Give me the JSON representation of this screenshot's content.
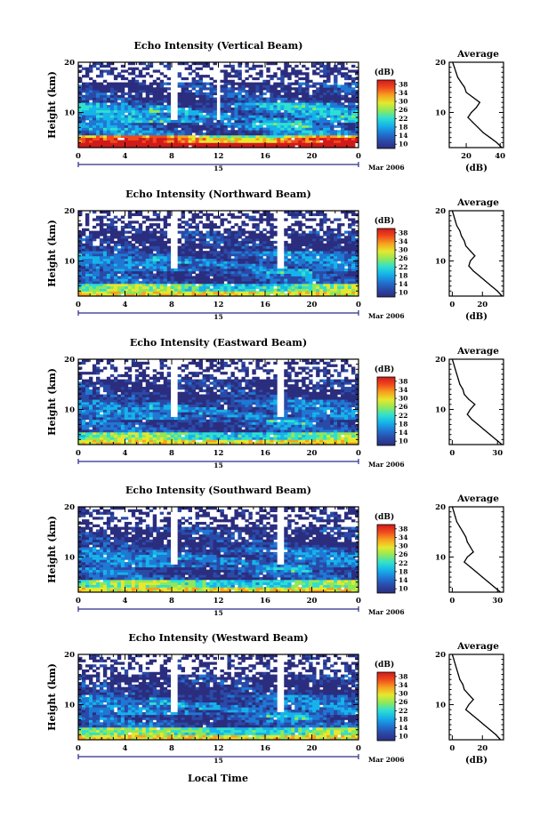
{
  "figure": {
    "xlabel": "Local Time",
    "date_label": "15",
    "month_label": "Mar 2006"
  },
  "colorbar": {
    "unit": "(dB)",
    "ticks": [
      "10",
      "14",
      "18",
      "22",
      "26",
      "30",
      "34",
      "38"
    ],
    "range": [
      10,
      40
    ],
    "colors": [
      "#2b2d7e",
      "#2a4aa8",
      "#1f78d4",
      "#16b3ea",
      "#2fe0d0",
      "#8fe85a",
      "#e5e82e",
      "#f7a21e",
      "#f04a1e",
      "#d01a1a"
    ]
  },
  "chart_data": [
    {
      "type": "heatmap",
      "title": "Echo Intensity (Vertical Beam)",
      "xlabel": "Local Time",
      "ylabel": "Height (km)",
      "xlim": [
        0,
        24
      ],
      "ylim": [
        3,
        20
      ],
      "xticks": [
        "0",
        "4",
        "8",
        "12",
        "16",
        "20",
        "0"
      ],
      "yticks": [
        "20",
        "10"
      ],
      "zlim": [
        10,
        40
      ],
      "zunit": "dB",
      "data_gaps_hours": [
        8.2,
        12.1
      ],
      "profile": {
        "title": "Average",
        "xlabel": "(dB)",
        "xlim": [
          10,
          42
        ],
        "xticks": [
          "20",
          "40"
        ],
        "xticks_values": [
          20,
          40
        ],
        "height": [
          3,
          4,
          5,
          6,
          7,
          8,
          9,
          10,
          11,
          12,
          13,
          14,
          15,
          16,
          17,
          18,
          19,
          20
        ],
        "avg_db": [
          41,
          38,
          34,
          30,
          27,
          24,
          21,
          23,
          26,
          28,
          24,
          20,
          19,
          17,
          15,
          14,
          13,
          12
        ]
      }
    },
    {
      "type": "heatmap",
      "title": "Echo Intensity (Northward Beam)",
      "xlabel": "Local Time",
      "ylabel": "Height (km)",
      "xlim": [
        0,
        24
      ],
      "ylim": [
        3,
        20
      ],
      "xticks": [
        "0",
        "4",
        "8",
        "12",
        "16",
        "20",
        "0"
      ],
      "yticks": [
        "20",
        "10"
      ],
      "zlim": [
        10,
        40
      ],
      "zunit": "dB",
      "data_gaps_hours": [
        8.2,
        17.3
      ],
      "profile": {
        "title": "Average",
        "xlabel": "(dB)",
        "xlim": [
          -2,
          34
        ],
        "xticks": [
          "0",
          "20"
        ],
        "xticks_values": [
          0,
          20
        ],
        "height": [
          3,
          4,
          5,
          6,
          7,
          8,
          9,
          10,
          11,
          12,
          13,
          14,
          15,
          16,
          17,
          18,
          19,
          20
        ],
        "avg_db": [
          33,
          30,
          26,
          22,
          18,
          14,
          11,
          12,
          15,
          12,
          9,
          8,
          6,
          5,
          3,
          2,
          1,
          0
        ]
      }
    },
    {
      "type": "heatmap",
      "title": "Echo Intensity (Eastward Beam)",
      "xlabel": "Local Time",
      "ylabel": "Height (km)",
      "xlim": [
        0,
        24
      ],
      "ylim": [
        3,
        20
      ],
      "xticks": [
        "0",
        "4",
        "8",
        "12",
        "16",
        "20",
        "0"
      ],
      "yticks": [
        "20",
        "10"
      ],
      "zlim": [
        10,
        40
      ],
      "zunit": "dB",
      "data_gaps_hours": [
        8.2,
        17.3
      ],
      "profile": {
        "title": "Average",
        "xlabel": "",
        "xlim": [
          -2,
          34
        ],
        "xticks": [
          "0",
          "30"
        ],
        "xticks_values": [
          0,
          30
        ],
        "height": [
          3,
          4,
          5,
          6,
          7,
          8,
          9,
          10,
          11,
          12,
          13,
          14,
          15,
          16,
          17,
          18,
          19,
          20
        ],
        "avg_db": [
          33,
          29,
          25,
          21,
          17,
          13,
          10,
          12,
          15,
          11,
          8,
          7,
          5,
          4,
          3,
          2,
          1,
          0
        ]
      }
    },
    {
      "type": "heatmap",
      "title": "Echo Intensity (Southward Beam)",
      "xlabel": "Local Time",
      "ylabel": "Height (km)",
      "xlim": [
        0,
        24
      ],
      "ylim": [
        3,
        20
      ],
      "xticks": [
        "0",
        "4",
        "8",
        "12",
        "16",
        "20",
        "0"
      ],
      "yticks": [
        "20",
        "10"
      ],
      "zlim": [
        10,
        40
      ],
      "zunit": "dB",
      "data_gaps_hours": [
        8.2,
        17.3
      ],
      "profile": {
        "title": "Average",
        "xlabel": "",
        "xlim": [
          -2,
          34
        ],
        "xticks": [
          "0",
          "30"
        ],
        "xticks_values": [
          0,
          30
        ],
        "height": [
          3,
          4,
          5,
          6,
          7,
          8,
          9,
          10,
          11,
          12,
          13,
          14,
          15,
          16,
          17,
          18,
          19,
          20
        ],
        "avg_db": [
          32,
          28,
          24,
          20,
          16,
          12,
          8,
          10,
          14,
          12,
          10,
          9,
          7,
          5,
          3,
          2,
          1,
          0
        ]
      }
    },
    {
      "type": "heatmap",
      "title": "Echo Intensity (Westward Beam)",
      "xlabel": "Local Time",
      "ylabel": "Height (km)",
      "xlim": [
        0,
        24
      ],
      "ylim": [
        3,
        20
      ],
      "xticks": [
        "0",
        "4",
        "8",
        "12",
        "16",
        "20",
        "0"
      ],
      "yticks": [
        "20",
        "10"
      ],
      "zlim": [
        10,
        40
      ],
      "zunit": "dB",
      "data_gaps_hours": [
        8.2,
        17.3
      ],
      "profile": {
        "title": "Average",
        "xlabel": "(dB)",
        "xlim": [
          -2,
          34
        ],
        "xticks": [
          "0",
          "20"
        ],
        "xticks_values": [
          0,
          20
        ],
        "height": [
          3,
          4,
          5,
          6,
          7,
          8,
          9,
          10,
          11,
          12,
          13,
          14,
          15,
          16,
          17,
          18,
          19,
          20
        ],
        "avg_db": [
          32,
          29,
          25,
          21,
          17,
          13,
          9,
          11,
          14,
          11,
          8,
          7,
          5,
          4,
          3,
          2,
          1,
          0
        ]
      }
    }
  ]
}
